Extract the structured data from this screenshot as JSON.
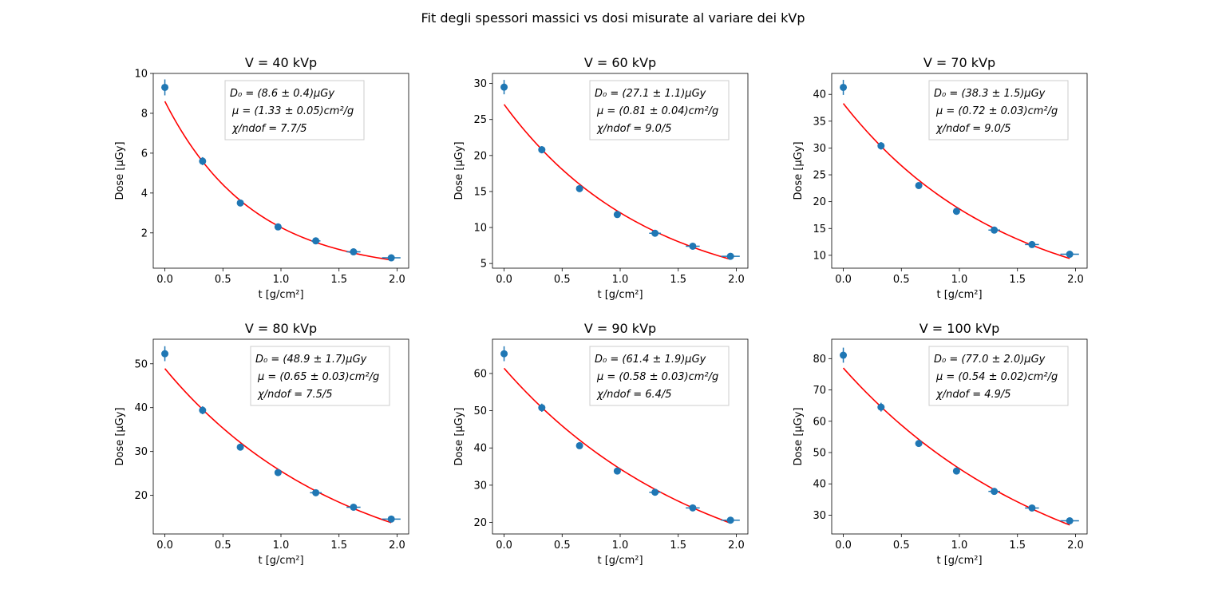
{
  "figure_title": "Fit degli spessori massici vs dosi misurate al variare dei kVp",
  "colors": {
    "points": "#1f77b4",
    "fit": "#ff0000",
    "axes": "#000000",
    "legend_border": "#cccccc"
  },
  "chart_data": [
    {
      "type": "scatter",
      "title": "V = 40 kVp",
      "xlabel": "t [g/cm²]",
      "ylabel": "Dose [μGy]",
      "xlim": [
        -0.1,
        2.1
      ],
      "ylim": [
        0.23,
        10.0
      ],
      "xticks": [
        0.0,
        0.5,
        1.0,
        1.5,
        2.0
      ],
      "xtick_labels": [
        "0.0",
        "0.5",
        "1.0",
        "1.5",
        "2.0"
      ],
      "yticks": [
        2,
        4,
        6,
        8,
        10
      ],
      "ytick_labels": [
        "2",
        "4",
        "6",
        "8",
        "10"
      ],
      "x": [
        0.0,
        0.325,
        0.65,
        0.975,
        1.3,
        1.625,
        1.95
      ],
      "x_err": [
        0.0,
        0.01,
        0.02,
        0.03,
        0.04,
        0.06,
        0.08
      ],
      "y": [
        9.3,
        5.6,
        3.5,
        2.3,
        1.6,
        1.05,
        0.75
      ],
      "y_err": [
        0.4,
        0.2,
        0.14,
        0.1,
        0.07,
        0.05,
        0.04
      ],
      "fit": {
        "D0": 8.6,
        "mu": 1.33,
        "x_range": [
          0.0,
          1.95
        ]
      },
      "legend": {
        "line1": "D₀ = (8.6 ± 0.4)μGy",
        "line2": "μ = (1.33 ± 0.05)cm²/g",
        "line3": "χ/ndof = 7.7/5"
      }
    },
    {
      "type": "scatter",
      "title": "V = 60 kVp",
      "xlabel": "t [g/cm²]",
      "ylabel": "Dose [μGy]",
      "xlim": [
        -0.1,
        2.1
      ],
      "ylim": [
        4.35,
        31.4
      ],
      "xticks": [
        0.0,
        0.5,
        1.0,
        1.5,
        2.0
      ],
      "xtick_labels": [
        "0.0",
        "0.5",
        "1.0",
        "1.5",
        "2.0"
      ],
      "yticks": [
        5,
        10,
        15,
        20,
        25,
        30
      ],
      "ytick_labels": [
        "5",
        "10",
        "15",
        "20",
        "25",
        "30"
      ],
      "x": [
        0.0,
        0.325,
        0.65,
        0.975,
        1.3,
        1.625,
        1.95
      ],
      "x_err": [
        0.0,
        0.01,
        0.02,
        0.03,
        0.05,
        0.06,
        0.08
      ],
      "y": [
        29.5,
        20.8,
        15.4,
        11.8,
        9.2,
        7.4,
        6.0
      ],
      "y_err": [
        1.0,
        0.5,
        0.35,
        0.3,
        0.25,
        0.2,
        0.2
      ],
      "fit": {
        "D0": 27.1,
        "mu": 0.81,
        "x_range": [
          0.0,
          1.95
        ]
      },
      "legend": {
        "line1": "D₀ = (27.1 ± 1.1)μGy",
        "line2": "μ = (0.81 ± 0.04)cm²/g",
        "line3": "χ/ndof = 9.0/5"
      }
    },
    {
      "type": "scatter",
      "title": "V = 70 kVp",
      "xlabel": "t [g/cm²]",
      "ylabel": "Dose [μGy]",
      "xlim": [
        -0.1,
        2.1
      ],
      "ylim": [
        7.6,
        43.9
      ],
      "xticks": [
        0.0,
        0.5,
        1.0,
        1.5,
        2.0
      ],
      "xtick_labels": [
        "0.0",
        "0.5",
        "1.0",
        "1.5",
        "2.0"
      ],
      "yticks": [
        10,
        15,
        20,
        25,
        30,
        35,
        40
      ],
      "ytick_labels": [
        "10",
        "15",
        "20",
        "25",
        "30",
        "35",
        "40"
      ],
      "x": [
        0.0,
        0.325,
        0.65,
        0.975,
        1.3,
        1.625,
        1.95
      ],
      "x_err": [
        0.0,
        0.01,
        0.02,
        0.03,
        0.05,
        0.06,
        0.08
      ],
      "y": [
        41.3,
        30.4,
        23.0,
        18.2,
        14.7,
        12.0,
        10.2
      ],
      "y_err": [
        1.4,
        0.7,
        0.5,
        0.4,
        0.35,
        0.3,
        0.25
      ],
      "fit": {
        "D0": 38.3,
        "mu": 0.72,
        "x_range": [
          0.0,
          1.95
        ]
      },
      "legend": {
        "line1": "D₀ = (38.3 ± 1.5)μGy",
        "line2": "μ = (0.72 ± 0.03)cm²/g",
        "line3": "χ/ndof = 9.0/5"
      }
    },
    {
      "type": "scatter",
      "title": "V = 80 kVp",
      "xlabel": "t [g/cm²]",
      "ylabel": "Dose [μGy]",
      "xlim": [
        -0.1,
        2.1
      ],
      "ylim": [
        11.2,
        55.6
      ],
      "xticks": [
        0.0,
        0.5,
        1.0,
        1.5,
        2.0
      ],
      "xtick_labels": [
        "0.0",
        "0.5",
        "1.0",
        "1.5",
        "2.0"
      ],
      "yticks": [
        20,
        30,
        40,
        50
      ],
      "ytick_labels": [
        "20",
        "30",
        "40",
        "50"
      ],
      "x": [
        0.0,
        0.325,
        0.65,
        0.975,
        1.3,
        1.625,
        1.95
      ],
      "x_err": [
        0.0,
        0.01,
        0.02,
        0.03,
        0.05,
        0.06,
        0.08
      ],
      "y": [
        52.3,
        39.4,
        31.0,
        25.2,
        20.6,
        17.3,
        14.6
      ],
      "y_err": [
        1.7,
        0.9,
        0.7,
        0.55,
        0.45,
        0.4,
        0.35
      ],
      "fit": {
        "D0": 48.9,
        "mu": 0.65,
        "x_range": [
          0.0,
          1.95
        ]
      },
      "legend": {
        "line1": "D₀ = (48.9 ± 1.7)μGy",
        "line2": "μ = (0.65 ± 0.03)cm²/g",
        "line3": "χ/ndof = 7.5/5"
      }
    },
    {
      "type": "scatter",
      "title": "V = 90 kVp",
      "xlabel": "t [g/cm²]",
      "ylabel": "Dose [μGy]",
      "xlim": [
        -0.1,
        2.1
      ],
      "ylim": [
        16.9,
        69.2
      ],
      "xticks": [
        0.0,
        0.5,
        1.0,
        1.5,
        2.0
      ],
      "xtick_labels": [
        "0.0",
        "0.5",
        "1.0",
        "1.5",
        "2.0"
      ],
      "yticks": [
        20,
        30,
        40,
        50,
        60
      ],
      "ytick_labels": [
        "20",
        "30",
        "40",
        "50",
        "60"
      ],
      "x": [
        0.0,
        0.325,
        0.65,
        0.975,
        1.3,
        1.625,
        1.95
      ],
      "x_err": [
        0.0,
        0.01,
        0.02,
        0.03,
        0.05,
        0.06,
        0.08
      ],
      "y": [
        65.3,
        50.8,
        40.6,
        33.8,
        28.1,
        23.9,
        20.6
      ],
      "y_err": [
        2.0,
        1.1,
        0.8,
        0.65,
        0.55,
        0.5,
        0.45
      ],
      "fit": {
        "D0": 61.4,
        "mu": 0.58,
        "x_range": [
          0.0,
          1.95
        ]
      },
      "legend": {
        "line1": "D₀ = (61.4 ± 1.9)μGy",
        "line2": "μ = (0.58 ± 0.03)cm²/g",
        "line3": "χ/ndof = 6.4/5"
      }
    },
    {
      "type": "scatter",
      "title": "V = 100 kVp",
      "xlabel": "t [g/cm²]",
      "ylabel": "Dose [μGy]",
      "xlim": [
        -0.1,
        2.1
      ],
      "ylim": [
        24.0,
        86.2
      ],
      "xticks": [
        0.0,
        0.5,
        1.0,
        1.5,
        2.0
      ],
      "xtick_labels": [
        "0.0",
        "0.5",
        "1.0",
        "1.5",
        "2.0"
      ],
      "yticks": [
        30,
        40,
        50,
        60,
        70,
        80
      ],
      "ytick_labels": [
        "30",
        "40",
        "50",
        "60",
        "70",
        "80"
      ],
      "x": [
        0.0,
        0.325,
        0.65,
        0.975,
        1.3,
        1.625,
        1.95
      ],
      "x_err": [
        0.0,
        0.01,
        0.02,
        0.03,
        0.05,
        0.06,
        0.08
      ],
      "y": [
        81.1,
        64.5,
        52.9,
        44.1,
        37.6,
        32.3,
        28.2
      ],
      "y_err": [
        2.4,
        1.4,
        1.0,
        0.8,
        0.7,
        0.6,
        0.55
      ],
      "fit": {
        "D0": 77.0,
        "mu": 0.54,
        "x_range": [
          0.0,
          1.95
        ]
      },
      "legend": {
        "line1": "D₀ = (77.0 ± 2.0)μGy",
        "line2": "μ = (0.54 ± 0.02)cm²/g",
        "line3": "χ/ndof = 4.9/5"
      }
    }
  ]
}
